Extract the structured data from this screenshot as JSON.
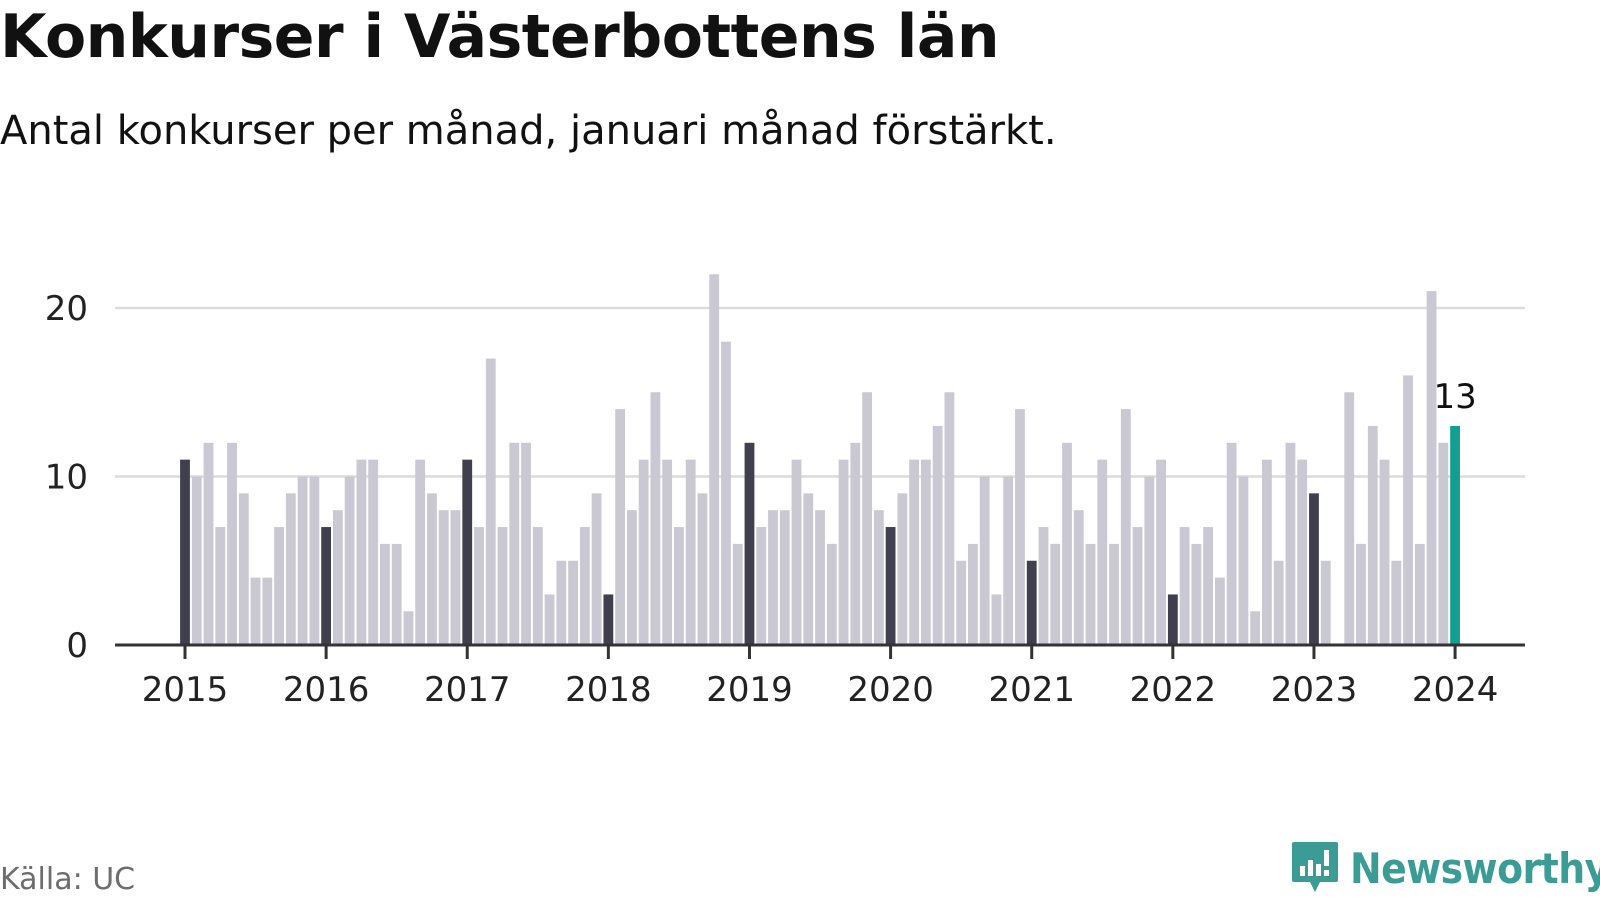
{
  "title": "Konkurser i Västerbottens län",
  "subtitle": "Antal konkurser per månad, januari månad förstärkt.",
  "source": "Källa: UC",
  "brand": {
    "name": "Newsworthy",
    "icon": "newsworthy-logo-icon"
  },
  "colors": {
    "bar": "#c9c8d3",
    "bar_january": "#3f3f4d",
    "bar_latest": "#139e94",
    "grid": "#dcdcdc",
    "axis": "#333333",
    "brand": "#3a9c94"
  },
  "chart_data": {
    "type": "bar",
    "title": "",
    "xlabel": "",
    "ylabel": "",
    "ylim": [
      0,
      22
    ],
    "yticks": [
      0,
      10,
      20
    ],
    "grid": true,
    "x_tick_labels": [
      "2015",
      "2016",
      "2017",
      "2018",
      "2019",
      "2020",
      "2021",
      "2022",
      "2023",
      "2024"
    ],
    "first_month": "2015-01",
    "values": [
      11,
      10,
      12,
      7,
      12,
      9,
      4,
      4,
      7,
      9,
      10,
      10,
      7,
      8,
      10,
      11,
      11,
      6,
      6,
      2,
      11,
      9,
      8,
      8,
      11,
      7,
      17,
      7,
      12,
      12,
      7,
      3,
      5,
      5,
      7,
      9,
      3,
      14,
      8,
      11,
      15,
      11,
      7,
      11,
      9,
      22,
      18,
      6,
      12,
      7,
      8,
      8,
      11,
      9,
      8,
      6,
      11,
      12,
      15,
      8,
      7,
      9,
      11,
      11,
      13,
      15,
      5,
      6,
      10,
      3,
      10,
      14,
      5,
      7,
      6,
      12,
      8,
      6,
      11,
      6,
      14,
      7,
      10,
      11,
      3,
      7,
      6,
      7,
      4,
      12,
      10,
      2,
      11,
      5,
      12,
      11,
      9,
      5,
      0,
      15,
      6,
      13,
      11,
      5,
      16,
      6,
      21,
      12,
      13
    ],
    "annotation": {
      "month": "2024-01",
      "label": "13"
    }
  }
}
